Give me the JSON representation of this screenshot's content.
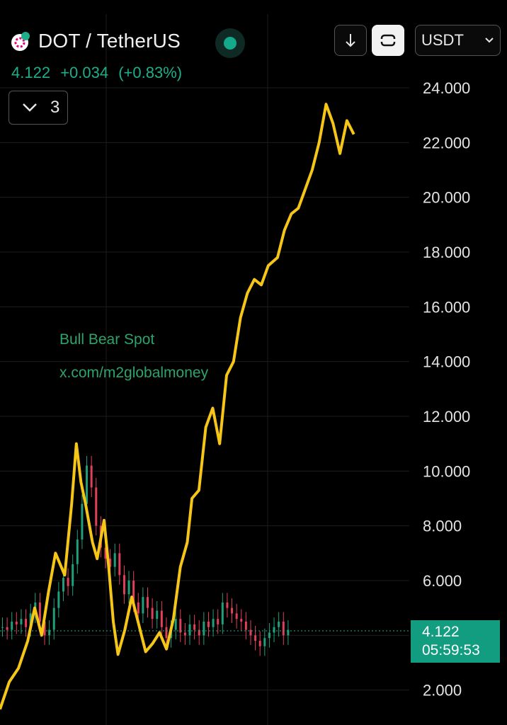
{
  "header": {
    "symbol": "DOT / TetherUS",
    "currency": "USDT",
    "price": "4.122",
    "change": "+0.034",
    "change_pct": "(+0.83%)",
    "collapse_count": "3"
  },
  "watermark": {
    "line1": "Bull Bear Spot",
    "line2": "x.com/m2globalmoney"
  },
  "price_tag": {
    "price": "4.122",
    "countdown": "05:59:53"
  },
  "colors": {
    "background": "#000000",
    "overlay_line": "#f5c518",
    "up_candle": "#1fa07a",
    "down_candle": "#e0405a",
    "accent": "#129c80"
  },
  "icons": [
    "polkadot-logo-icon",
    "live-status-icon",
    "arrow-down-icon",
    "swap-icon",
    "chevron-down-icon"
  ],
  "chart_data": {
    "type": "line",
    "y_ticks": [
      "24.000",
      "22.000",
      "20.000",
      "18.000",
      "16.000",
      "14.000",
      "12.000",
      "10.000",
      "8.000",
      "6.000",
      "2.000"
    ],
    "ylim": [
      1.3,
      25.5
    ],
    "grid": true,
    "current_price": 4.122,
    "series": [
      {
        "type": "line",
        "color": "#f5c518",
        "points": [
          [
            0,
            1.3
          ],
          [
            0.02,
            2.3
          ],
          [
            0.04,
            2.8
          ],
          [
            0.06,
            3.8
          ],
          [
            0.075,
            5.0
          ],
          [
            0.09,
            4.0
          ],
          [
            0.105,
            5.6
          ],
          [
            0.12,
            7.0
          ],
          [
            0.14,
            6.2
          ],
          [
            0.155,
            8.8
          ],
          [
            0.165,
            11.0
          ],
          [
            0.175,
            9.6
          ],
          [
            0.185,
            8.8
          ],
          [
            0.2,
            7.4
          ],
          [
            0.21,
            6.8
          ],
          [
            0.225,
            8.2
          ],
          [
            0.235,
            6.5
          ],
          [
            0.245,
            4.5
          ],
          [
            0.255,
            3.3
          ],
          [
            0.27,
            4.2
          ],
          [
            0.285,
            5.4
          ],
          [
            0.3,
            4.4
          ],
          [
            0.315,
            3.4
          ],
          [
            0.33,
            3.7
          ],
          [
            0.345,
            4.1
          ],
          [
            0.36,
            3.5
          ],
          [
            0.375,
            4.6
          ],
          [
            0.39,
            6.5
          ],
          [
            0.405,
            7.4
          ],
          [
            0.415,
            9.0
          ],
          [
            0.43,
            9.3
          ],
          [
            0.445,
            11.6
          ],
          [
            0.46,
            12.3
          ],
          [
            0.475,
            11.0
          ],
          [
            0.49,
            13.5
          ],
          [
            0.505,
            14.0
          ],
          [
            0.52,
            15.6
          ],
          [
            0.535,
            16.5
          ],
          [
            0.55,
            17.0
          ],
          [
            0.565,
            16.8
          ],
          [
            0.58,
            17.5
          ],
          [
            0.6,
            17.8
          ],
          [
            0.615,
            18.8
          ],
          [
            0.63,
            19.4
          ],
          [
            0.645,
            19.6
          ],
          [
            0.66,
            20.3
          ],
          [
            0.675,
            21.0
          ],
          [
            0.69,
            22.0
          ],
          [
            0.705,
            23.4
          ],
          [
            0.72,
            22.7
          ],
          [
            0.735,
            21.6
          ],
          [
            0.75,
            22.8
          ],
          [
            0.765,
            22.3
          ]
        ]
      },
      {
        "type": "candlestick",
        "closes": [
          4.3,
          4.2,
          4.5,
          4.4,
          4.6,
          4.3,
          4.8,
          5.2,
          4.5,
          4.0,
          4.2,
          5.0,
          5.6,
          6.1,
          5.8,
          6.6,
          7.5,
          8.8,
          10.2,
          9.4,
          8.0,
          7.2,
          6.8,
          6.5,
          7.0,
          6.2,
          5.5,
          6.0,
          5.2,
          4.8,
          5.4,
          5.0,
          4.6,
          4.9,
          4.3,
          3.9,
          4.2,
          4.6,
          4.1,
          4.0,
          4.4,
          4.2,
          4.0,
          4.5,
          4.3,
          4.6,
          4.4,
          5.2,
          5.0,
          4.8,
          4.6,
          4.5,
          4.2,
          4.0,
          3.8,
          3.6,
          3.9,
          4.1,
          4.3,
          4.5,
          4.0,
          4.2
        ]
      }
    ]
  }
}
